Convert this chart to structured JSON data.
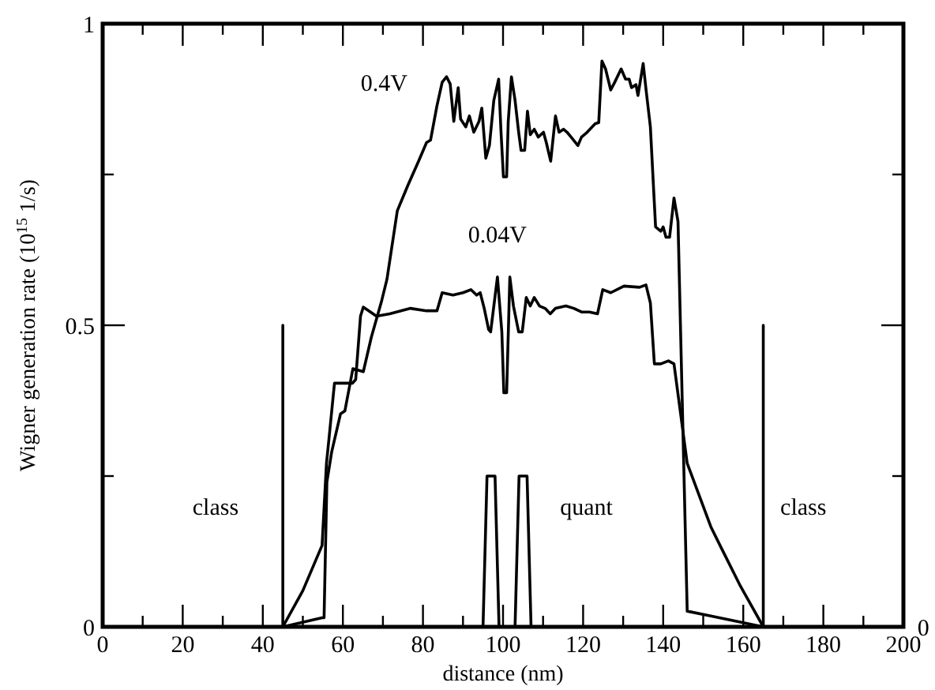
{
  "chart_data": {
    "type": "line",
    "xlabel": "distance (nm)",
    "ylabel": "Wigner generation rate (10$^{15}$ 1/s)",
    "xlim": [
      0,
      200
    ],
    "xticks": [
      0,
      {
        "value": 10,
        "label": null
      },
      20,
      {
        "value": 30,
        "label": null
      },
      40,
      {
        "value": 50,
        "label": null
      },
      60,
      {
        "value": 70,
        "label": null
      },
      80,
      {
        "value": 90,
        "label": null
      },
      100,
      {
        "value": 110,
        "label": null
      },
      120,
      {
        "value": 130,
        "label": null
      },
      140,
      {
        "value": 150,
        "label": null
      },
      160,
      {
        "value": 170,
        "label": null
      },
      180,
      {
        "value": 190,
        "label": null
      },
      200
    ],
    "ylim": [
      0,
      1
    ],
    "yticks": [
      0,
      {
        "value": 0.25,
        "label": null
      },
      0.5,
      {
        "value": 0.75,
        "label": null
      },
      1
    ],
    "series": [
      {
        "name": "0.4V",
        "color": "#000000",
        "x": [
          45,
          54.8,
          55.3,
          56,
          57.2,
          59.4,
          60.5,
          62.5,
          65.1,
          67.1,
          69.7,
          71,
          73.6,
          76.3,
          78.9,
          80.9,
          81.9,
          83.5,
          84.8,
          85.9,
          86.8,
          87.7,
          88.8,
          89.4,
          90.7,
          91.6,
          92.7,
          94,
          94.7,
          95.7,
          96.6,
          97.7,
          98.9,
          99.5,
          100.1,
          100.9,
          101.3,
          102.1,
          103,
          103.9,
          104.5,
          105.4,
          106.1,
          106.8,
          107.8,
          108.8,
          110.1,
          110.8,
          111.9,
          113.1,
          114,
          115.1,
          116,
          117,
          118.7,
          119.6,
          121,
          123,
          123.9,
          124.7,
          125.6,
          126.9,
          127.9,
          129.5,
          130.6,
          131.5,
          132.1,
          133.2,
          133.7,
          135,
          135.8,
          136.8,
          138.1,
          139.4,
          140,
          140.7,
          141.6,
          142.7,
          143.7,
          146,
          151.9,
          165
        ],
        "values": [
          0,
          0.015,
          0.015,
          0.24,
          0.29,
          0.353,
          0.358,
          0.428,
          0.423,
          0.48,
          0.541,
          0.576,
          0.69,
          0.733,
          0.772,
          0.803,
          0.807,
          0.864,
          0.903,
          0.912,
          0.9,
          0.838,
          0.894,
          0.842,
          0.829,
          0.847,
          0.82,
          0.838,
          0.86,
          0.777,
          0.798,
          0.873,
          0.908,
          0.82,
          0.746,
          0.746,
          0.838,
          0.912,
          0.873,
          0.82,
          0.79,
          0.79,
          0.855,
          0.816,
          0.825,
          0.812,
          0.82,
          0.803,
          0.772,
          0.847,
          0.82,
          0.825,
          0.82,
          0.812,
          0.798,
          0.812,
          0.82,
          0.834,
          0.836,
          0.938,
          0.925,
          0.89,
          0.903,
          0.925,
          0.908,
          0.908,
          0.894,
          0.899,
          0.881,
          0.934,
          0.886,
          0.829,
          0.663,
          0.656,
          0.663,
          0.646,
          0.646,
          0.711,
          0.672,
          0.026,
          0.018,
          0
        ]
      },
      {
        "name": "0.04V",
        "color": "#000000",
        "x": [
          45,
          50,
          54.8,
          55.9,
          56.5,
          57.9,
          62.4,
          63.2,
          64.4,
          65.1,
          68.4,
          71.7,
          76.9,
          80.9,
          83.5,
          84.8,
          87.5,
          90,
          92,
          93.4,
          94.3,
          95.3,
          96.4,
          96.9,
          98.6,
          99.7,
          100.2,
          100.9,
          101.7,
          102.6,
          103.9,
          104.8,
          105.8,
          106.8,
          107.8,
          109.1,
          110.5,
          111.8,
          113.1,
          115.7,
          117.7,
          119.6,
          121.6,
          123.6,
          124.9,
          126.9,
          130.2,
          134.1,
          135.7,
          136.8,
          137.8,
          139.4,
          141.3,
          142.7,
          146,
          151.9,
          154.5,
          159.1,
          165
        ],
        "values": [
          0,
          0.06,
          0.135,
          0.271,
          0.31,
          0.404,
          0.404,
          0.41,
          0.515,
          0.53,
          0.515,
          0.519,
          0.528,
          0.524,
          0.524,
          0.554,
          0.55,
          0.554,
          0.559,
          0.55,
          0.554,
          0.528,
          0.493,
          0.489,
          0.58,
          0.489,
          0.388,
          0.388,
          0.58,
          0.532,
          0.489,
          0.489,
          0.546,
          0.532,
          0.546,
          0.532,
          0.528,
          0.519,
          0.528,
          0.532,
          0.528,
          0.522,
          0.522,
          0.519,
          0.559,
          0.554,
          0.565,
          0.563,
          0.567,
          0.537,
          0.436,
          0.436,
          0.441,
          0.436,
          0.271,
          0.166,
          0.131,
          0.07,
          0
        ]
      },
      {
        "color": "#000000",
        "x": [
          95,
          96,
          98,
          99,
          103,
          104,
          106,
          107
        ],
        "values": [
          0,
          0.25,
          0.25,
          0,
          0,
          0.25,
          0.25,
          0
        ]
      },
      {
        "color": "#000000",
        "x": [
          45,
          45
        ],
        "values": [
          0,
          0.5
        ]
      },
      {
        "color": "#000000",
        "x": [
          165,
          165
        ],
        "values": [
          0,
          0.5
        ]
      }
    ],
    "annotations": [
      "class",
      "quant",
      "class",
      "0"
    ]
  }
}
